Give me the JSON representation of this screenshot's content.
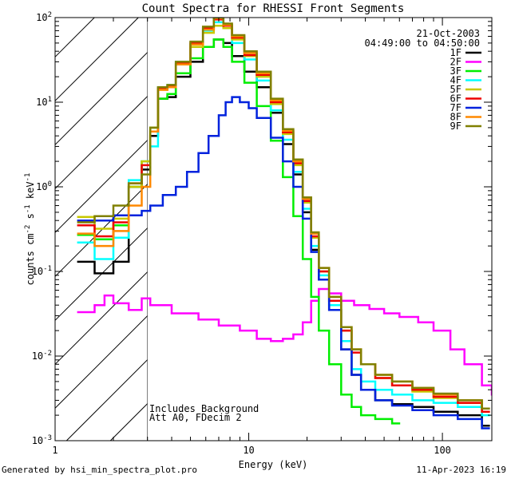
{
  "chart_data": {
    "type": "line",
    "title": "Count Spectra for RHESSI Front Segments",
    "xlabel": "Energy (keV)",
    "ylabel": "counts cm^-2 s^-1 keV^-1",
    "xscale": "log",
    "yscale": "log",
    "xlim": [
      1.0,
      180.0
    ],
    "ylim": [
      0.001,
      100.0
    ],
    "x_tick_labels": [
      "1",
      "10",
      "100"
    ],
    "y_tick_labels": [
      "10^-3",
      "10^-2",
      "10^-1",
      "10^0",
      "10^1",
      "10^2"
    ],
    "shaded_region": {
      "x_from": 1.0,
      "x_to": 3.0,
      "pattern": "diagonal hatch"
    },
    "date": "21-Oct-2003",
    "time_range": "04:49:00 to 04:50:00",
    "annotations": [
      "Includes Background",
      "Att A0, FDecim 2"
    ],
    "legend_position": "top-right",
    "series": [
      {
        "name": "1F",
        "color": "#000000",
        "points": [
          [
            1.3,
            0.13
          ],
          [
            1.6,
            0.095
          ],
          [
            2.0,
            0.13
          ],
          [
            2.4,
            1.0
          ],
          [
            2.8,
            1.6
          ],
          [
            3.1,
            4.0
          ],
          [
            3.4,
            11.0
          ],
          [
            3.8,
            11.5
          ],
          [
            4.2,
            20.0
          ],
          [
            5.0,
            30.0
          ],
          [
            5.8,
            45.0
          ],
          [
            6.6,
            55.0
          ],
          [
            7.4,
            50.0
          ],
          [
            8.2,
            35.0
          ],
          [
            9.5,
            23.0
          ],
          [
            11.0,
            15.0
          ],
          [
            13.0,
            7.5
          ],
          [
            15.0,
            3.2
          ],
          [
            17.0,
            1.4
          ],
          [
            19.0,
            0.5
          ],
          [
            21.0,
            0.18
          ],
          [
            23.0,
            0.08
          ],
          [
            26.0,
            0.035
          ],
          [
            30.0,
            0.012
          ],
          [
            34.0,
            0.006
          ],
          [
            38.0,
            0.004
          ],
          [
            45.0,
            0.003
          ],
          [
            55.0,
            0.0027
          ],
          [
            70.0,
            0.0025
          ],
          [
            90.0,
            0.0022
          ],
          [
            120.0,
            0.002
          ],
          [
            160.0,
            0.0015
          ]
        ]
      },
      {
        "name": "2F",
        "color": "#ff00ff",
        "points": [
          [
            1.3,
            0.033
          ],
          [
            1.6,
            0.04
          ],
          [
            1.8,
            0.052
          ],
          [
            2.0,
            0.042
          ],
          [
            2.4,
            0.035
          ],
          [
            2.8,
            0.048
          ],
          [
            3.1,
            0.04
          ],
          [
            4.0,
            0.032
          ],
          [
            5.5,
            0.027
          ],
          [
            7.0,
            0.023
          ],
          [
            9.0,
            0.02
          ],
          [
            11.0,
            0.016
          ],
          [
            13.0,
            0.015
          ],
          [
            15.0,
            0.016
          ],
          [
            17.0,
            0.018
          ],
          [
            19.0,
            0.025
          ],
          [
            21.0,
            0.045
          ],
          [
            23.0,
            0.062
          ],
          [
            26.0,
            0.055
          ],
          [
            30.0,
            0.045
          ],
          [
            35.0,
            0.04
          ],
          [
            42.0,
            0.036
          ],
          [
            50.0,
            0.032
          ],
          [
            60.0,
            0.029
          ],
          [
            75.0,
            0.025
          ],
          [
            90.0,
            0.02
          ],
          [
            110.0,
            0.012
          ],
          [
            130.0,
            0.008
          ],
          [
            160.0,
            0.0045
          ],
          [
            180.0,
            0.0035
          ]
        ]
      },
      {
        "name": "3F",
        "color": "#00ee00",
        "points": [
          [
            1.3,
            0.27
          ],
          [
            1.6,
            0.24
          ],
          [
            2.0,
            0.35
          ],
          [
            2.4,
            1.0
          ],
          [
            2.8,
            2.0
          ],
          [
            3.1,
            5.0
          ],
          [
            3.4,
            11.0
          ],
          [
            3.8,
            12.5
          ],
          [
            4.2,
            22.0
          ],
          [
            5.0,
            33.0
          ],
          [
            5.8,
            45.0
          ],
          [
            6.6,
            55.0
          ],
          [
            7.4,
            45.0
          ],
          [
            8.2,
            30.0
          ],
          [
            9.5,
            17.0
          ],
          [
            11.0,
            9.0
          ],
          [
            13.0,
            3.5
          ],
          [
            15.0,
            1.3
          ],
          [
            17.0,
            0.45
          ],
          [
            19.0,
            0.14
          ],
          [
            21.0,
            0.05
          ],
          [
            23.0,
            0.02
          ],
          [
            26.0,
            0.008
          ],
          [
            30.0,
            0.0035
          ],
          [
            34.0,
            0.0025
          ],
          [
            38.0,
            0.002
          ],
          [
            45.0,
            0.0018
          ],
          [
            55.0,
            0.0016
          ]
        ]
      },
      {
        "name": "4F",
        "color": "#00ffff",
        "points": [
          [
            1.3,
            0.22
          ],
          [
            1.6,
            0.14
          ],
          [
            2.0,
            0.25
          ],
          [
            2.4,
            1.2
          ],
          [
            2.8,
            2.0
          ],
          [
            3.1,
            3.0
          ],
          [
            3.4,
            15.0
          ],
          [
            3.8,
            16.0
          ],
          [
            4.2,
            30.0
          ],
          [
            5.0,
            48.0
          ],
          [
            5.8,
            70.0
          ],
          [
            6.6,
            88.0
          ],
          [
            7.4,
            75.0
          ],
          [
            8.2,
            50.0
          ],
          [
            9.5,
            32.0
          ],
          [
            11.0,
            18.0
          ],
          [
            13.0,
            8.0
          ],
          [
            15.0,
            3.6
          ],
          [
            17.0,
            1.5
          ],
          [
            19.0,
            0.55
          ],
          [
            21.0,
            0.2
          ],
          [
            23.0,
            0.09
          ],
          [
            26.0,
            0.04
          ],
          [
            30.0,
            0.015
          ],
          [
            34.0,
            0.007
          ],
          [
            38.0,
            0.005
          ],
          [
            45.0,
            0.004
          ],
          [
            55.0,
            0.0035
          ],
          [
            70.0,
            0.003
          ],
          [
            90.0,
            0.0028
          ],
          [
            120.0,
            0.0025
          ],
          [
            160.0,
            0.002
          ]
        ]
      },
      {
        "name": "5F",
        "color": "#c8c800",
        "points": [
          [
            1.3,
            0.44
          ],
          [
            1.6,
            0.32
          ],
          [
            2.0,
            0.42
          ],
          [
            2.4,
            1.0
          ],
          [
            2.8,
            2.0
          ],
          [
            3.1,
            5.0
          ],
          [
            3.4,
            14.0
          ],
          [
            3.8,
            15.0
          ],
          [
            4.2,
            28.0
          ],
          [
            5.0,
            45.0
          ],
          [
            5.8,
            66.0
          ],
          [
            6.6,
            80.0
          ],
          [
            7.4,
            75.0
          ],
          [
            8.2,
            55.0
          ],
          [
            9.5,
            35.0
          ],
          [
            11.0,
            20.0
          ],
          [
            13.0,
            9.5
          ],
          [
            15.0,
            4.2
          ],
          [
            17.0,
            1.8
          ],
          [
            19.0,
            0.65
          ],
          [
            21.0,
            0.25
          ],
          [
            23.0,
            0.1
          ],
          [
            26.0,
            0.045
          ],
          [
            30.0,
            0.02
          ],
          [
            34.0,
            0.012
          ],
          [
            38.0,
            0.008
          ],
          [
            45.0,
            0.0055
          ],
          [
            55.0,
            0.0045
          ],
          [
            70.0,
            0.0038
          ],
          [
            90.0,
            0.0032
          ],
          [
            120.0,
            0.0028
          ],
          [
            160.0,
            0.0022
          ]
        ]
      },
      {
        "name": "6F",
        "color": "#ee0000",
        "points": [
          [
            1.3,
            0.35
          ],
          [
            1.6,
            0.26
          ],
          [
            2.0,
            0.38
          ],
          [
            2.4,
            1.1
          ],
          [
            2.8,
            1.8
          ],
          [
            3.1,
            4.5
          ],
          [
            3.4,
            14.5
          ],
          [
            3.8,
            15.5
          ],
          [
            4.2,
            29.0
          ],
          [
            5.0,
            50.0
          ],
          [
            5.8,
            75.0
          ],
          [
            6.6,
            95.0
          ],
          [
            7.4,
            80.0
          ],
          [
            8.2,
            58.0
          ],
          [
            9.5,
            36.0
          ],
          [
            11.0,
            21.0
          ],
          [
            13.0,
            10.0
          ],
          [
            15.0,
            4.4
          ],
          [
            17.0,
            1.9
          ],
          [
            19.0,
            0.68
          ],
          [
            21.0,
            0.26
          ],
          [
            23.0,
            0.1
          ],
          [
            26.0,
            0.045
          ],
          [
            30.0,
            0.02
          ],
          [
            34.0,
            0.011
          ],
          [
            38.0,
            0.008
          ],
          [
            45.0,
            0.0055
          ],
          [
            55.0,
            0.0045
          ],
          [
            70.0,
            0.004
          ],
          [
            90.0,
            0.0033
          ],
          [
            120.0,
            0.0028
          ],
          [
            160.0,
            0.0022
          ]
        ]
      },
      {
        "name": "7F",
        "color": "#0022dd",
        "points": [
          [
            1.3,
            0.4
          ],
          [
            2.0,
            0.46
          ],
          [
            2.8,
            0.52
          ],
          [
            3.1,
            0.6
          ],
          [
            3.6,
            0.8
          ],
          [
            4.2,
            1.0
          ],
          [
            4.8,
            1.5
          ],
          [
            5.5,
            2.5
          ],
          [
            6.2,
            4.0
          ],
          [
            7.0,
            7.0
          ],
          [
            7.6,
            10.0
          ],
          [
            8.2,
            11.5
          ],
          [
            9.0,
            10.0
          ],
          [
            10.0,
            8.5
          ],
          [
            11.0,
            6.5
          ],
          [
            13.0,
            3.8
          ],
          [
            15.0,
            2.0
          ],
          [
            17.0,
            1.0
          ],
          [
            19.0,
            0.42
          ],
          [
            21.0,
            0.17
          ],
          [
            23.0,
            0.08
          ],
          [
            26.0,
            0.035
          ],
          [
            30.0,
            0.012
          ],
          [
            34.0,
            0.006
          ],
          [
            38.0,
            0.004
          ],
          [
            45.0,
            0.003
          ],
          [
            55.0,
            0.0026
          ],
          [
            70.0,
            0.0023
          ],
          [
            90.0,
            0.002
          ],
          [
            120.0,
            0.0018
          ],
          [
            160.0,
            0.0014
          ]
        ]
      },
      {
        "name": "8F",
        "color": "#ff8800",
        "points": [
          [
            1.3,
            0.28
          ],
          [
            1.6,
            0.2
          ],
          [
            2.0,
            0.3
          ],
          [
            2.4,
            0.6
          ],
          [
            2.8,
            1.0
          ],
          [
            3.1,
            4.5
          ],
          [
            3.4,
            14.0
          ],
          [
            3.8,
            15.0
          ],
          [
            4.2,
            28.0
          ],
          [
            5.0,
            48.0
          ],
          [
            5.8,
            72.0
          ],
          [
            6.6,
            98.0
          ],
          [
            7.4,
            82.0
          ],
          [
            8.2,
            60.0
          ],
          [
            9.5,
            38.0
          ],
          [
            11.0,
            22.0
          ],
          [
            13.0,
            10.5
          ],
          [
            15.0,
            4.6
          ],
          [
            17.0,
            2.0
          ],
          [
            19.0,
            0.72
          ],
          [
            21.0,
            0.28
          ],
          [
            23.0,
            0.11
          ],
          [
            26.0,
            0.05
          ],
          [
            30.0,
            0.022
          ],
          [
            34.0,
            0.012
          ],
          [
            38.0,
            0.008
          ],
          [
            45.0,
            0.006
          ],
          [
            55.0,
            0.005
          ],
          [
            70.0,
            0.0042
          ],
          [
            90.0,
            0.0035
          ],
          [
            120.0,
            0.003
          ],
          [
            160.0,
            0.0024
          ]
        ]
      },
      {
        "name": "9F",
        "color": "#808000",
        "points": [
          [
            1.3,
            0.38
          ],
          [
            1.6,
            0.45
          ],
          [
            2.0,
            0.6
          ],
          [
            2.4,
            1.1
          ],
          [
            2.8,
            1.4
          ],
          [
            3.1,
            5.0
          ],
          [
            3.4,
            15.0
          ],
          [
            3.8,
            16.0
          ],
          [
            4.2,
            30.0
          ],
          [
            5.0,
            52.0
          ],
          [
            5.8,
            78.0
          ],
          [
            6.6,
            100.0
          ],
          [
            7.4,
            85.0
          ],
          [
            8.2,
            62.0
          ],
          [
            9.5,
            40.0
          ],
          [
            11.0,
            23.0
          ],
          [
            13.0,
            11.0
          ],
          [
            15.0,
            4.8
          ],
          [
            17.0,
            2.1
          ],
          [
            19.0,
            0.75
          ],
          [
            21.0,
            0.29
          ],
          [
            23.0,
            0.11
          ],
          [
            26.0,
            0.05
          ],
          [
            30.0,
            0.022
          ],
          [
            34.0,
            0.012
          ],
          [
            38.0,
            0.008
          ],
          [
            45.0,
            0.006
          ],
          [
            55.0,
            0.005
          ],
          [
            70.0,
            0.0042
          ],
          [
            90.0,
            0.0036
          ],
          [
            120.0,
            0.003
          ],
          [
            160.0,
            0.0024
          ]
        ]
      }
    ]
  },
  "footer": {
    "left": "Generated by hsi_min_spectra_plot.pro",
    "right": "11-Apr-2023 16:19"
  }
}
